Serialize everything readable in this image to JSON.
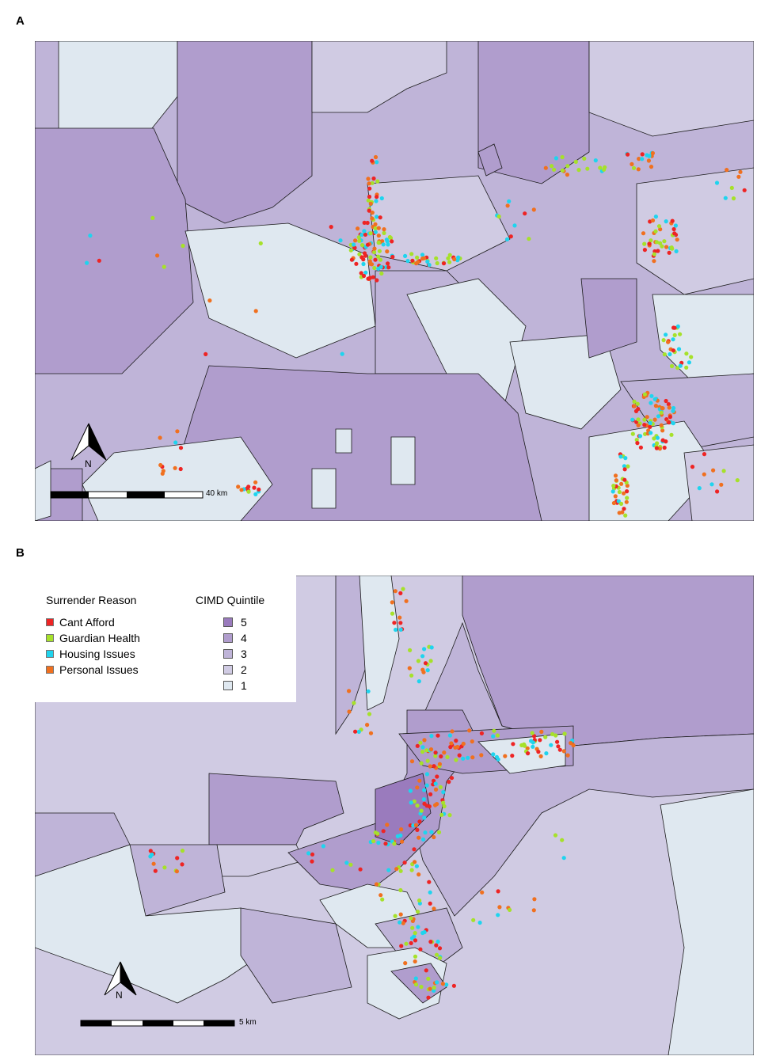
{
  "panels": {
    "a": {
      "letter": "A",
      "scale_label": "40 km",
      "north_label": "N"
    },
    "b": {
      "letter": "B",
      "scale_label": "5 km",
      "north_label": "N"
    }
  },
  "legend": {
    "reason_title": "Surrender Reason",
    "reasons": [
      {
        "label": "Cant Afford",
        "color": "#ee2424"
      },
      {
        "label": "Guardian Health",
        "color": "#a6e12a"
      },
      {
        "label": "Housing Issues",
        "color": "#1fd4ee"
      },
      {
        "label": "Personal Issues",
        "color": "#f0701f"
      }
    ],
    "quintile_title": "CIMD Quintile",
    "quintiles": [
      {
        "label": "5",
        "color": "#9a7bbd"
      },
      {
        "label": "4",
        "color": "#b09dcd"
      },
      {
        "label": "3",
        "color": "#bfb4d8"
      },
      {
        "label": "2",
        "color": "#d0cbe3"
      },
      {
        "label": "1",
        "color": "#dfe8f0"
      }
    ]
  }
}
